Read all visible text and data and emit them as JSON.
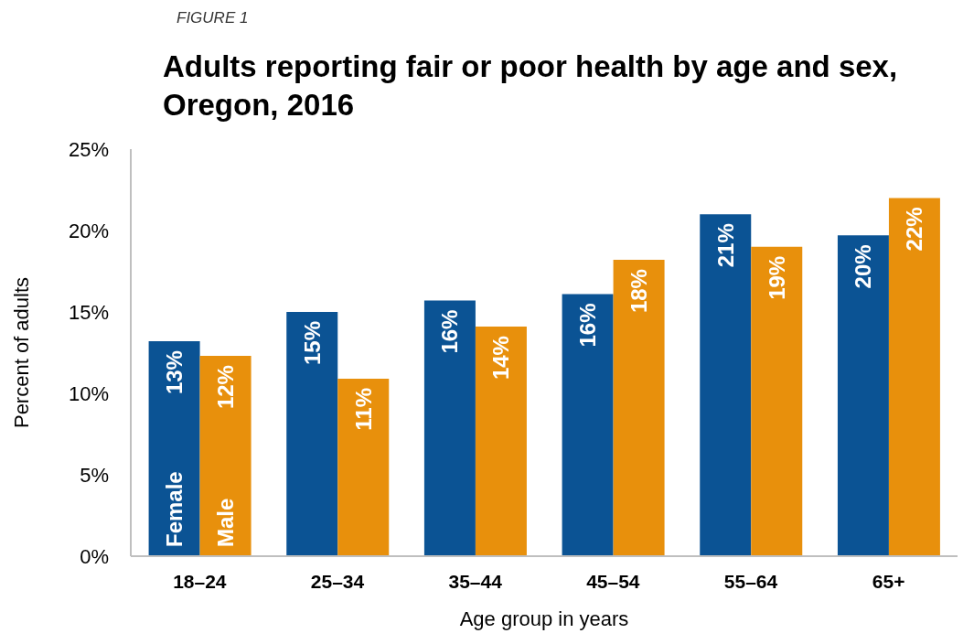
{
  "chart_data": {
    "type": "bar",
    "title": "Adults reporting fair or poor health by age and sex, Oregon, 2016",
    "annotations": [
      "FIGURE 1"
    ],
    "xlabel": "Age group in years",
    "ylabel": "Percent of adults",
    "categories": [
      "18–24",
      "25–34",
      "35–44",
      "45–54",
      "55–64",
      "65+"
    ],
    "series": [
      {
        "name": "Female",
        "color": "#0b5394",
        "values": [
          13.2,
          15.0,
          15.7,
          16.1,
          21.0,
          19.7
        ],
        "value_labels": [
          "13%",
          "15%",
          "16%",
          "16%",
          "21%",
          "20%"
        ]
      },
      {
        "name": "Male",
        "color": "#e8900c",
        "values": [
          12.3,
          10.9,
          14.1,
          18.2,
          19.0,
          22.0
        ],
        "value_labels": [
          "12%",
          "11%",
          "14%",
          "18%",
          "19%",
          "22%"
        ]
      }
    ],
    "ylim": [
      0,
      25
    ],
    "yticks": [
      {
        "value": 0,
        "label": "0%"
      },
      {
        "value": 5,
        "label": "5%"
      },
      {
        "value": 10,
        "label": "10%"
      },
      {
        "value": 15,
        "label": "15%"
      },
      {
        "value": 20,
        "label": "20%"
      },
      {
        "value": 25,
        "label": "25%"
      }
    ],
    "grid": false
  }
}
